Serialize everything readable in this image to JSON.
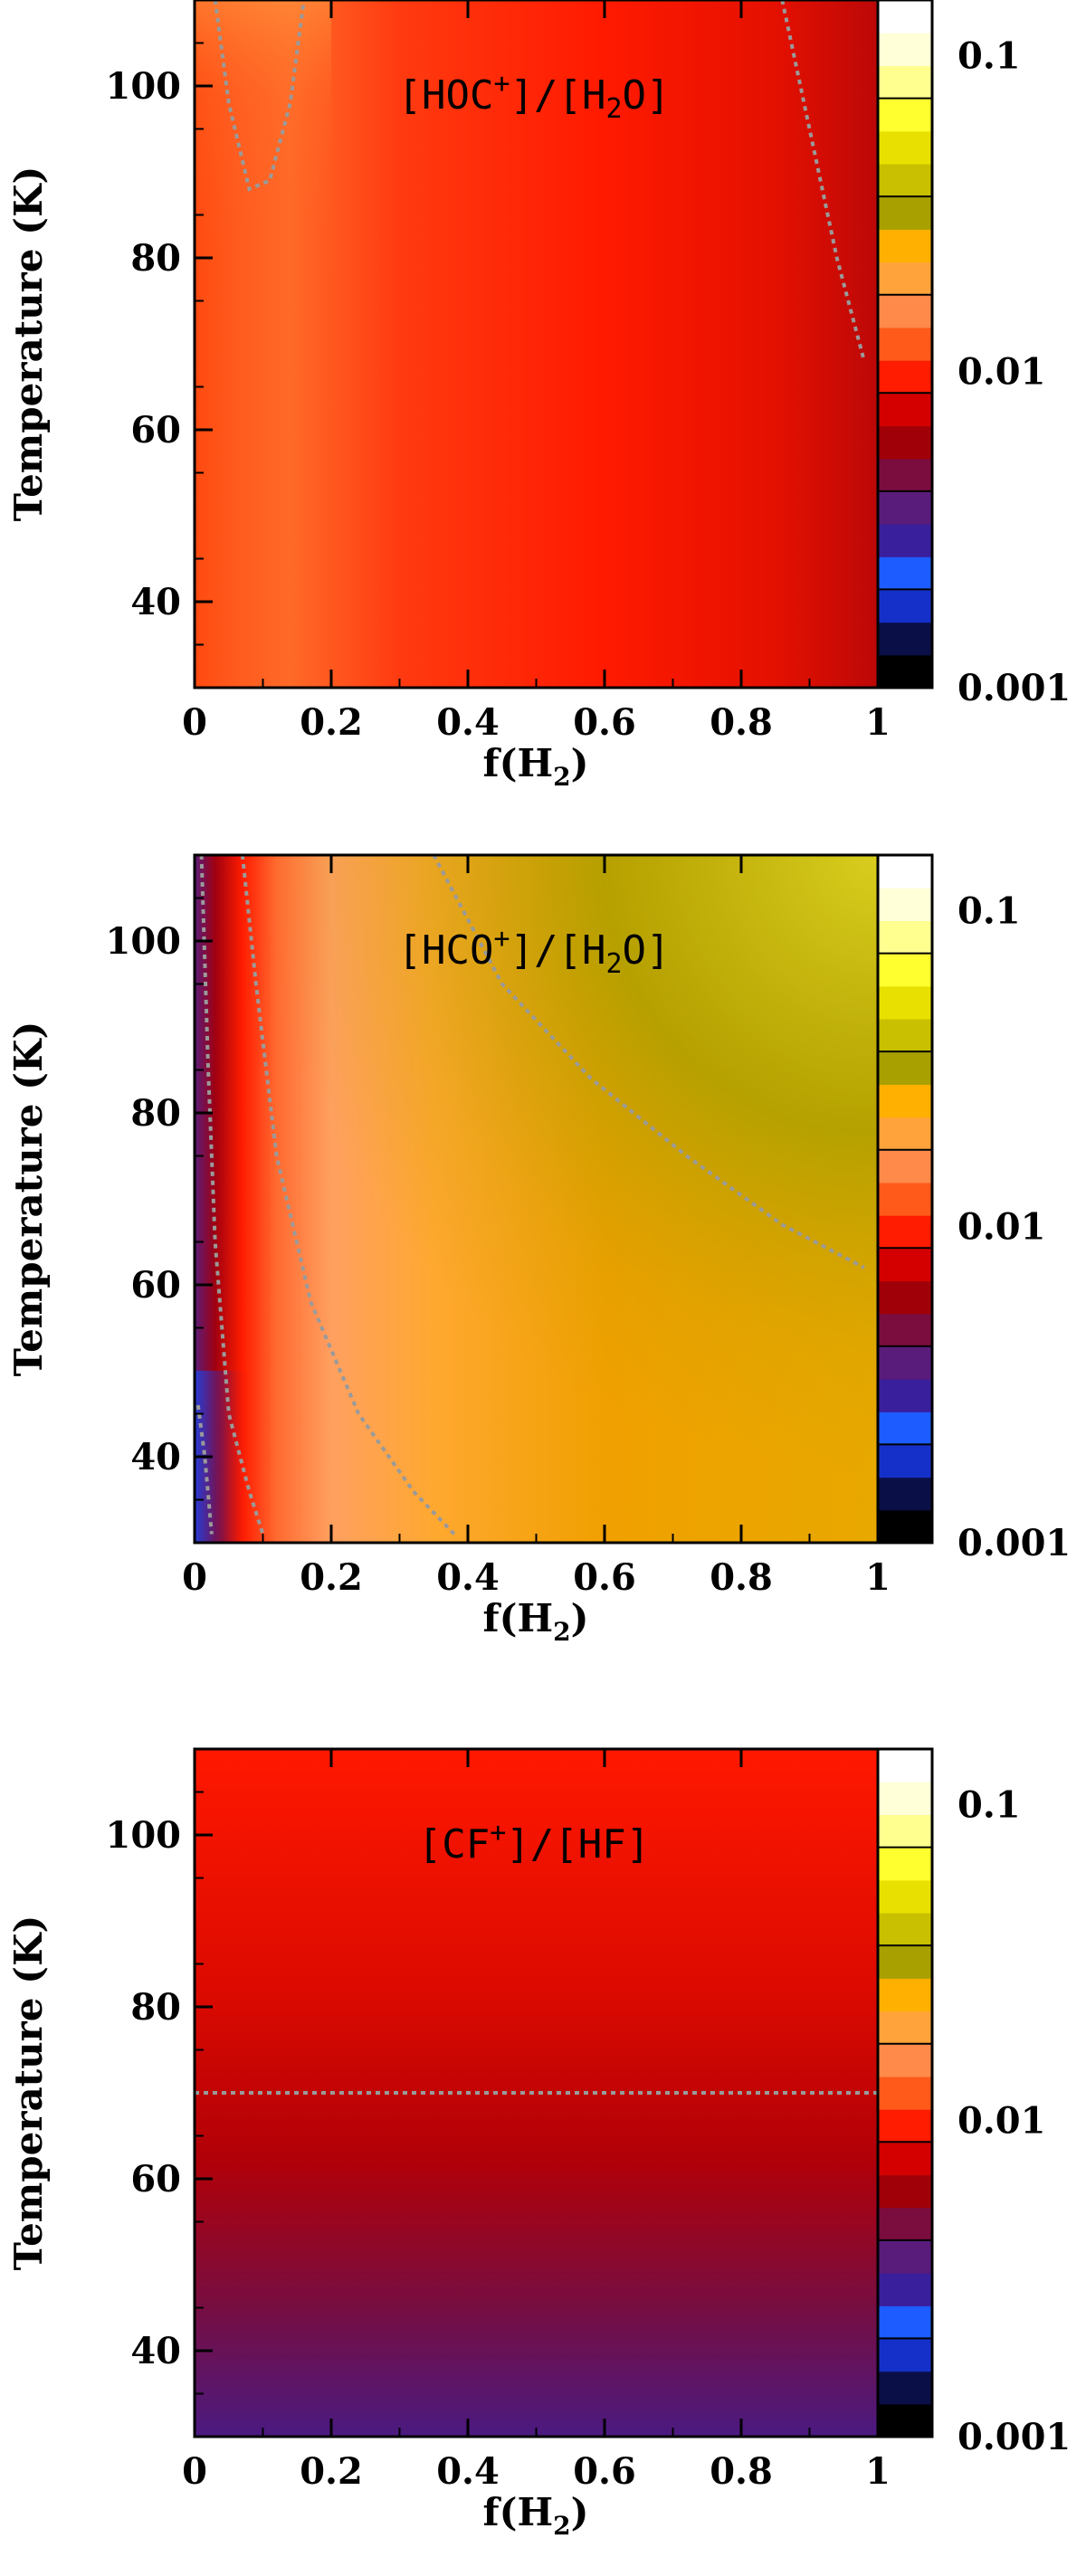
{
  "colorbar": {
    "min": 0.001,
    "max": 0.15,
    "ticks": [
      {
        "value": 0.1,
        "label": "0.1"
      },
      {
        "value": 0.01,
        "label": "0.01"
      },
      {
        "value": 0.001,
        "label": "0.001"
      }
    ],
    "colors": [
      "#000000",
      "#0b0f47",
      "#1530c8",
      "#1d5cff",
      "#3a1f9c",
      "#5a1c7a",
      "#7a0d3e",
      "#a00008",
      "#d40000",
      "#ff1c00",
      "#ff5a1a",
      "#ff8a4a",
      "#ffa33a",
      "#ffb000",
      "#a8a000",
      "#c8c000",
      "#e8e000",
      "#ffff30",
      "#ffff90",
      "#ffffd8",
      "#ffffff"
    ]
  },
  "chart_data": [
    {
      "type": "heatmap",
      "label_html": [
        "[HOC",
        "+",
        "]/[H",
        "2",
        "O]"
      ],
      "xlabel": [
        "f(H",
        "2",
        ")"
      ],
      "ylabel": "Temperature (K)",
      "xlim": [
        0,
        1
      ],
      "ylim": [
        30,
        110
      ],
      "xticks": [
        "0",
        "0.2",
        "0.4",
        "0.6",
        "0.8",
        "1"
      ],
      "yticks": [
        "40",
        "60",
        "80",
        "100"
      ],
      "contours": [
        {
          "points": [
            [
              0.03,
              110
            ],
            [
              0.05,
              98
            ],
            [
              0.08,
              88
            ],
            [
              0.11,
              89
            ],
            [
              0.14,
              98
            ],
            [
              0.16,
              110
            ]
          ]
        },
        {
          "points": [
            [
              0.86,
              110
            ],
            [
              0.9,
              95
            ],
            [
              0.94,
              80
            ],
            [
              0.98,
              68
            ]
          ]
        }
      ]
    },
    {
      "type": "heatmap",
      "label_html": [
        "[HCO",
        "+",
        "]/[H",
        "2",
        "O]"
      ],
      "xlabel": [
        "f(H",
        "2",
        ")"
      ],
      "ylabel": "Temperature (K)",
      "xlim": [
        0,
        1
      ],
      "ylim": [
        30,
        110
      ],
      "xticks": [
        "0",
        "0.2",
        "0.4",
        "0.6",
        "0.8",
        "1"
      ],
      "yticks": [
        "40",
        "60",
        "80",
        "100"
      ],
      "contours": [
        {
          "points": [
            [
              0.005,
              46
            ],
            [
              0.015,
              40
            ],
            [
              0.025,
              31
            ]
          ]
        },
        {
          "points": [
            [
              0.01,
              110
            ],
            [
              0.02,
              85
            ],
            [
              0.03,
              65
            ],
            [
              0.05,
              45
            ],
            [
              0.08,
              36
            ],
            [
              0.1,
              31
            ]
          ]
        },
        {
          "points": [
            [
              0.07,
              110
            ],
            [
              0.09,
              95
            ],
            [
              0.12,
              75
            ],
            [
              0.17,
              58
            ],
            [
              0.24,
              45
            ],
            [
              0.32,
              36
            ],
            [
              0.38,
              31
            ]
          ]
        },
        {
          "points": [
            [
              0.35,
              110
            ],
            [
              0.45,
              95
            ],
            [
              0.58,
              84
            ],
            [
              0.72,
              75
            ],
            [
              0.86,
              67
            ],
            [
              0.98,
              62
            ]
          ]
        }
      ]
    },
    {
      "type": "heatmap",
      "label_html": [
        "[CF",
        "+",
        "]/[HF]",
        "",
        ""
      ],
      "xlabel": [
        "f(H",
        "2",
        ")"
      ],
      "ylabel": "Temperature (K)",
      "xlim": [
        0,
        1
      ],
      "ylim": [
        30,
        110
      ],
      "xticks": [
        "0",
        "0.2",
        "0.4",
        "0.6",
        "0.8",
        "1"
      ],
      "yticks": [
        "40",
        "60",
        "80",
        "100"
      ],
      "contours": [
        {
          "points": [
            [
              0,
              70
            ],
            [
              1,
              70
            ]
          ]
        }
      ]
    }
  ]
}
